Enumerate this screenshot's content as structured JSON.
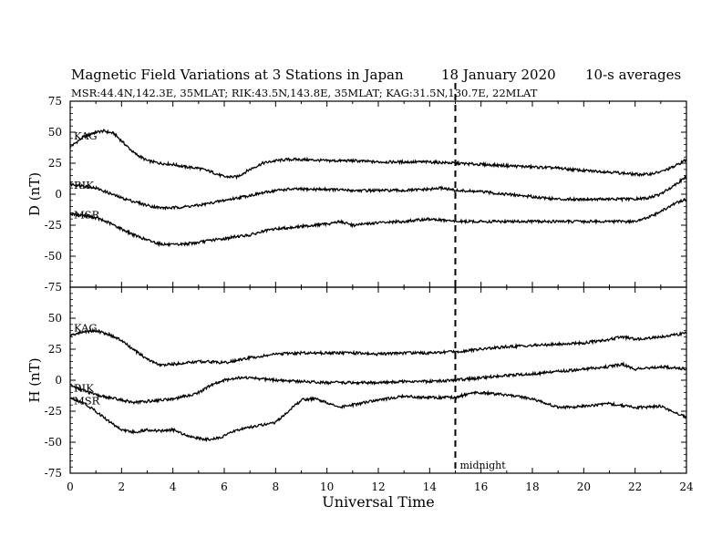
{
  "header": {
    "title": "Magnetic Field Variations at 3 Stations in Japan",
    "date": "18 January  2020",
    "averaging": "10-s averages",
    "stations": "MSR:44.4N,142.3E, 35MLAT;  RIK:43.5N,143.8E, 35MLAT;  KAG:31.5N,130.7E, 22MLAT"
  },
  "chart_data": [
    {
      "type": "line",
      "panel": "top",
      "ylabel": "D (nT)",
      "ylim": [
        -75,
        75
      ],
      "yticks": [
        75,
        50,
        25,
        0,
        -25,
        -50,
        -75
      ],
      "xlim": [
        0,
        24
      ],
      "marker": {
        "x": 15,
        "style": "dashed"
      },
      "series": [
        {
          "name": "KAG",
          "x": [
            0,
            0.5,
            1,
            1.3,
            1.7,
            2,
            2.5,
            3,
            3.5,
            4,
            4.5,
            5,
            5.5,
            6,
            6.5,
            7,
            7.5,
            8,
            8.5,
            9,
            10,
            11,
            12,
            13,
            14,
            15,
            16,
            17,
            18,
            19,
            20,
            21,
            22,
            22.5,
            23,
            23.5,
            24
          ],
          "y": [
            38,
            46,
            50,
            51,
            49,
            43,
            33,
            27,
            25,
            24,
            22,
            21,
            18,
            14,
            14,
            20,
            25,
            27,
            28,
            28,
            27,
            27,
            26,
            26,
            26,
            25,
            24,
            23,
            22,
            21,
            19,
            18,
            16,
            16,
            18,
            22,
            28
          ]
        },
        {
          "name": "RIK",
          "x": [
            0,
            0.5,
            1,
            1.5,
            2,
            2.5,
            3,
            3.5,
            4,
            4.5,
            5,
            5.5,
            6,
            6.5,
            7,
            7.5,
            8,
            8.5,
            9,
            10,
            11,
            12,
            13,
            14,
            14.5,
            15,
            16,
            17,
            18,
            19,
            20,
            21,
            22,
            22.5,
            23,
            23.5,
            24
          ],
          "y": [
            8,
            7,
            5,
            1,
            -3,
            -6,
            -9,
            -11,
            -11,
            -10,
            -9,
            -7,
            -5,
            -3,
            -1,
            1,
            3,
            4,
            4,
            4,
            3,
            3,
            3,
            4,
            5,
            3,
            2,
            0,
            -2,
            -4,
            -4,
            -4,
            -4,
            -3,
            0,
            7,
            14
          ]
        },
        {
          "name": "MSR",
          "x": [
            0,
            0.5,
            1,
            1.5,
            2,
            2.5,
            3,
            3.5,
            4,
            4.5,
            5,
            5.5,
            6,
            6.5,
            7,
            7.5,
            8,
            8.5,
            9,
            9.5,
            10,
            10.5,
            11,
            12,
            13,
            14,
            14.5,
            15,
            16,
            17,
            18,
            19,
            20,
            21,
            22,
            22.5,
            23,
            23.5,
            24
          ],
          "y": [
            -16,
            -17,
            -19,
            -23,
            -28,
            -33,
            -37,
            -40,
            -41,
            -40,
            -39,
            -37,
            -36,
            -34,
            -33,
            -30,
            -28,
            -27,
            -26,
            -25,
            -24,
            -22,
            -25,
            -23,
            -22,
            -20,
            -21,
            -22,
            -22,
            -22,
            -22,
            -22,
            -22,
            -22,
            -22,
            -19,
            -14,
            -8,
            -4
          ]
        }
      ]
    },
    {
      "type": "line",
      "panel": "bottom",
      "ylabel": "H (nT)",
      "xlabel": "Universal Time",
      "ylim": [
        -75,
        75
      ],
      "yticks": [
        50,
        25,
        0,
        -25,
        -50,
        -75
      ],
      "xlim": [
        0,
        24
      ],
      "xticks": [
        0,
        2,
        4,
        6,
        8,
        10,
        12,
        14,
        16,
        18,
        20,
        22,
        24
      ],
      "marker": {
        "x": 15,
        "style": "dashed",
        "label": "midnight"
      },
      "series": [
        {
          "name": "KAG",
          "x": [
            0,
            0.5,
            1,
            1.5,
            2,
            2.5,
            3,
            3.5,
            4,
            4.5,
            5,
            5.5,
            6,
            6.5,
            7,
            8,
            9,
            10,
            11,
            12,
            13,
            14,
            15,
            16,
            17,
            18,
            19,
            20,
            21,
            21.5,
            22,
            23,
            24
          ],
          "y": [
            36,
            39,
            40,
            37,
            32,
            24,
            17,
            12,
            13,
            14,
            15,
            15,
            14,
            16,
            18,
            21,
            22,
            22,
            22,
            21,
            22,
            22,
            23,
            25,
            27,
            28,
            29,
            30,
            33,
            35,
            33,
            35,
            38
          ]
        },
        {
          "name": "RIK",
          "x": [
            0,
            0.5,
            1,
            1.5,
            2,
            2.5,
            3,
            3.5,
            4,
            4.5,
            5,
            5.5,
            6,
            6.5,
            7,
            8,
            9,
            10,
            11,
            12,
            13,
            14,
            15,
            16,
            17,
            18,
            19,
            20,
            21,
            21.5,
            22,
            23,
            24
          ],
          "y": [
            -4,
            -8,
            -12,
            -14,
            -16,
            -18,
            -17,
            -16,
            -15,
            -13,
            -10,
            -4,
            0,
            2,
            2,
            0,
            -1,
            -2,
            -2,
            -2,
            -1,
            -1,
            0,
            2,
            4,
            5,
            7,
            9,
            11,
            13,
            9,
            11,
            9
          ]
        },
        {
          "name": "MSR",
          "x": [
            0,
            0.5,
            1,
            1.5,
            2,
            2.5,
            3,
            3.5,
            4,
            4.5,
            5,
            5.5,
            6,
            6.5,
            7,
            7.5,
            8,
            8.5,
            9,
            9.5,
            10,
            10.5,
            11,
            12,
            13,
            14,
            15,
            15.5,
            16,
            17,
            18,
            19,
            20,
            21,
            22,
            23,
            24
          ],
          "y": [
            -14,
            -18,
            -25,
            -33,
            -40,
            -42,
            -40,
            -41,
            -40,
            -44,
            -47,
            -48,
            -45,
            -40,
            -38,
            -36,
            -34,
            -25,
            -16,
            -15,
            -18,
            -22,
            -20,
            -16,
            -13,
            -14,
            -14,
            -11,
            -10,
            -12,
            -15,
            -22,
            -21,
            -19,
            -22,
            -21,
            -30
          ]
        }
      ]
    }
  ]
}
